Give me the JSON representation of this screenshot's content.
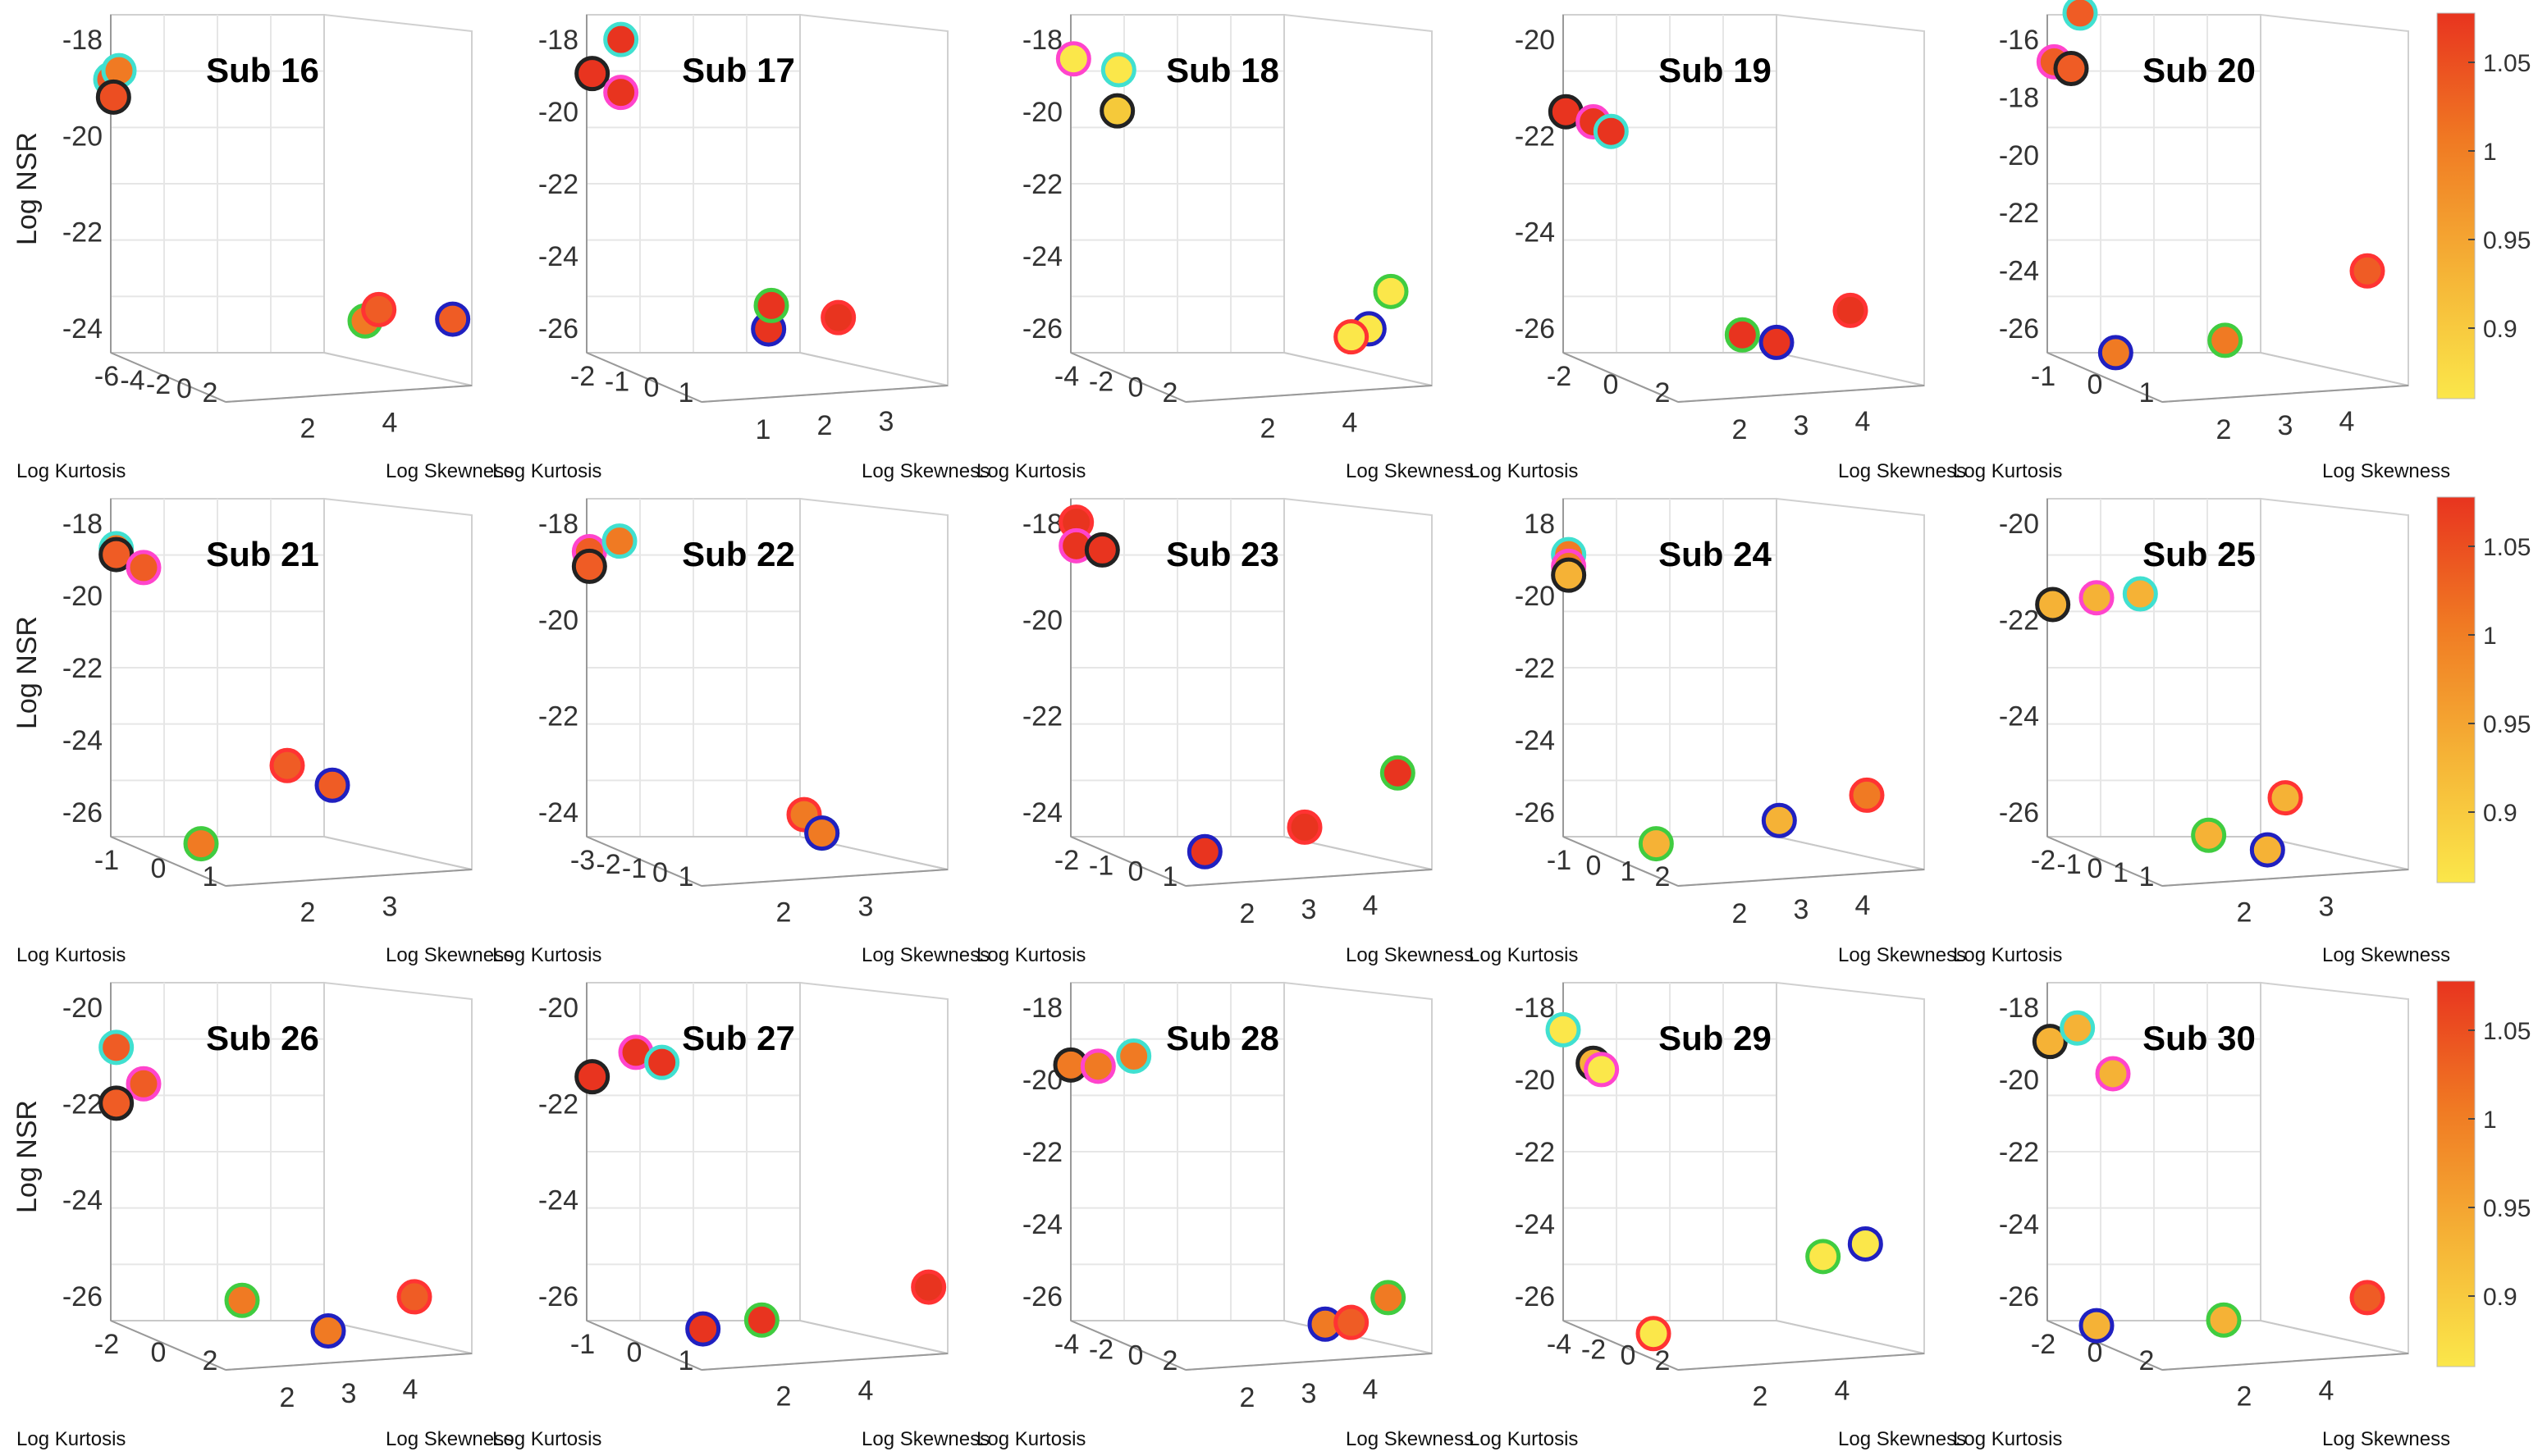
{
  "chart_data": {
    "type": "scatter",
    "projection": "3d",
    "marker_edge_colors": [
      "#222222",
      "#40e0d0",
      "#ff44cc",
      "#2020c0",
      "#40cc40",
      "#ff3333"
    ],
    "colorbar": {
      "ticks": [
        "1.05",
        "1",
        "0.95",
        "0.9"
      ],
      "colors": [
        "#e8341f",
        "#f07a23",
        "#f5b236",
        "#fbe74a"
      ]
    },
    "panels": [
      {
        "title": "Sub 16",
        "zlabel": "Log NSR",
        "xlabel": "Log Kurtosis",
        "ylabel": "Log Skewness",
        "zticks": [
          "-18",
          "-20",
          "-22",
          "-24"
        ],
        "xticks": [
          "-6",
          "-4",
          "-2",
          "0",
          "2"
        ],
        "yticks": [
          "2",
          "4"
        ],
        "points": [
          {
            "x": -4,
            "y": 0.5,
            "z": -18.2,
            "c": "#ef5c25",
            "e": 1
          },
          {
            "x": -1,
            "y": 0.5,
            "z": -17.9,
            "c": "#f07a23",
            "e": 1
          },
          {
            "x": -3,
            "y": 0.5,
            "z": -18.8,
            "c": "#ec4e22",
            "e": 0
          },
          {
            "x": -1,
            "y": 3.5,
            "z": -26.0,
            "c": "#f07a23",
            "e": 4
          },
          {
            "x": 1,
            "y": 3.6,
            "z": -25.6,
            "c": "#ef5c25",
            "e": 5
          },
          {
            "x": 1,
            "y": 4.6,
            "z": -25.8,
            "c": "#ef5c25",
            "e": 3
          }
        ]
      },
      {
        "title": "Sub 17",
        "zlabel": "",
        "xlabel": "Log Kurtosis",
        "ylabel": "Log Skewness",
        "zticks": [
          "-18",
          "-20",
          "-22",
          "-24",
          "-26"
        ],
        "xticks": [
          "-2",
          "-1",
          "0",
          "1"
        ],
        "yticks": [
          "1",
          "2",
          "3"
        ],
        "points": [
          {
            "x": -2,
            "y": 0.5,
            "z": -18.0,
            "c": "#e8341f",
            "e": 0
          },
          {
            "x": -0.5,
            "y": 0.8,
            "z": -16.8,
            "c": "#e8341f",
            "e": 1
          },
          {
            "x": -0.5,
            "y": 0.8,
            "z": -18.6,
            "c": "#e8341f",
            "e": 2
          },
          {
            "x": -0.5,
            "y": 2.6,
            "z": -26.4,
            "c": "#e8341f",
            "e": 3
          },
          {
            "x": 0.5,
            "y": 2.6,
            "z": -25.6,
            "c": "#e8341f",
            "e": 4
          },
          {
            "x": 1,
            "y": 3.4,
            "z": -25.9,
            "c": "#e8341f",
            "e": 5
          }
        ]
      },
      {
        "title": "Sub 18",
        "zlabel": "",
        "xlabel": "Log Kurtosis",
        "ylabel": "Log Skewness",
        "zticks": [
          "-18",
          "-20",
          "-22",
          "-24",
          "-26"
        ],
        "xticks": [
          "-4",
          "-2",
          "0",
          "2"
        ],
        "yticks": [
          "2",
          "4"
        ],
        "points": [
          {
            "x": -3,
            "y": 0.5,
            "z": -17.5,
            "c": "#fbe74a",
            "e": 2
          },
          {
            "x": -1.5,
            "y": 1.0,
            "z": -17.8,
            "c": "#fbe74a",
            "e": 1
          },
          {
            "x": -2,
            "y": 1.0,
            "z": -19.2,
            "c": "#f5c93a",
            "e": 0
          },
          {
            "x": 0,
            "y": 4.0,
            "z": -26.2,
            "c": "#fbe74a",
            "e": 3
          },
          {
            "x": -0.5,
            "y": 3.8,
            "z": -26.5,
            "c": "#fbe74a",
            "e": 5
          },
          {
            "x": 2,
            "y": 4.2,
            "z": -24.9,
            "c": "#fbe74a",
            "e": 4
          }
        ]
      },
      {
        "title": "Sub 19",
        "zlabel": "",
        "xlabel": "Log Kurtosis",
        "ylabel": "Log Skewness",
        "zticks": [
          "-20",
          "-22",
          "-24",
          "-26"
        ],
        "xticks": [
          "-2",
          "0",
          "2"
        ],
        "yticks": [
          "2",
          "3",
          "4"
        ],
        "points": [
          {
            "x": -3,
            "y": 0.5,
            "z": -19.3,
            "c": "#e8341f",
            "e": 0
          },
          {
            "x": -2,
            "y": 0.8,
            "z": -19.6,
            "c": "#e8341f",
            "e": 2
          },
          {
            "x": -1.5,
            "y": 1.0,
            "z": -19.9,
            "c": "#e8341f",
            "e": 1
          },
          {
            "x": -1,
            "y": 3.0,
            "z": -26.8,
            "c": "#e8341f",
            "e": 3
          },
          {
            "x": -1.5,
            "y": 2.6,
            "z": -26.6,
            "c": "#e8341f",
            "e": 4
          },
          {
            "x": 2,
            "y": 3.8,
            "z": -25.6,
            "c": "#e8341f",
            "e": 5
          }
        ]
      },
      {
        "title": "Sub 20",
        "zlabel": "",
        "xlabel": "Log Kurtosis",
        "ylabel": "Log Skewness",
        "zticks": [
          "-16",
          "-18",
          "-20",
          "-22",
          "-24",
          "-26"
        ],
        "xticks": [
          "-1",
          "0",
          "1"
        ],
        "yticks": [
          "2",
          "3",
          "4"
        ],
        "points": [
          {
            "x": -1.5,
            "y": 0.5,
            "z": -17.6,
            "c": "#ef5c25",
            "e": 2
          },
          {
            "x": -1,
            "y": 0.8,
            "z": -15.9,
            "c": "#ef5c25",
            "e": 1
          },
          {
            "x": -1.3,
            "y": 0.7,
            "z": -17.8,
            "c": "#ef5c25",
            "e": 0
          },
          {
            "x": 0,
            "y": 1.2,
            "z": -27.4,
            "c": "#f07a23",
            "e": 3
          },
          {
            "x": 1,
            "y": 2.5,
            "z": -26.8,
            "c": "#f07a23",
            "e": 4
          },
          {
            "x": 2,
            "y": 4.2,
            "z": -24.2,
            "c": "#ef5c25",
            "e": 5
          }
        ]
      },
      {
        "title": "Sub 21",
        "zlabel": "Log NSR",
        "xlabel": "Log Kurtosis",
        "ylabel": "Log Skewness",
        "zticks": [
          "-18",
          "-20",
          "-22",
          "-24",
          "-26"
        ],
        "xticks": [
          "-1",
          "0",
          "1"
        ],
        "yticks": [
          "2",
          "3"
        ],
        "points": [
          {
            "x": -2,
            "y": 0.5,
            "z": -17.7,
            "c": "#f07a23",
            "e": 1
          },
          {
            "x": -2,
            "y": 0.5,
            "z": -17.9,
            "c": "#ef5c25",
            "e": 0
          },
          {
            "x": -1,
            "y": 0.8,
            "z": -18.3,
            "c": "#ef5c25",
            "e": 2
          },
          {
            "x": -1,
            "y": 1.5,
            "z": -27.6,
            "c": "#f07a23",
            "e": 4
          },
          {
            "x": 0.5,
            "y": 2.5,
            "z": -24.8,
            "c": "#ef5c25",
            "e": 5
          },
          {
            "x": 2,
            "y": 3.0,
            "z": -25.4,
            "c": "#ef5c25",
            "e": 3
          }
        ]
      },
      {
        "title": "Sub 22",
        "zlabel": "",
        "xlabel": "Log Kurtosis",
        "ylabel": "Log Skewness",
        "zticks": [
          "-18",
          "-20",
          "-22",
          "-24"
        ],
        "xticks": [
          "-3",
          "-2",
          "-1",
          "0",
          "1"
        ],
        "yticks": [
          "2",
          "3"
        ],
        "points": [
          {
            "x": -3,
            "y": 0.5,
            "z": -17.8,
            "c": "#ef5c25",
            "e": 2
          },
          {
            "x": -3,
            "y": 0.5,
            "z": -18.3,
            "c": "#ef5c25",
            "e": 0
          },
          {
            "x": -1,
            "y": 0.8,
            "z": -17.4,
            "c": "#f07a23",
            "e": 1
          },
          {
            "x": 1,
            "y": 3.2,
            "z": -27.0,
            "c": "#f07a23",
            "e": 4
          },
          {
            "x": 0.5,
            "y": 3.0,
            "z": -26.4,
            "c": "#f07a23",
            "e": 5
          },
          {
            "x": 1,
            "y": 3.2,
            "z": -27.0,
            "c": "#f07a23",
            "e": 3
          }
        ]
      },
      {
        "title": "Sub 23",
        "zlabel": "",
        "xlabel": "Log Kurtosis",
        "ylabel": "Log Skewness",
        "zticks": [
          "-18",
          "-20",
          "-22",
          "-24"
        ],
        "xticks": [
          "-2",
          "-1",
          "0",
          "1"
        ],
        "yticks": [
          "2",
          "3",
          "4"
        ],
        "points": [
          {
            "x": -2,
            "y": 0.5,
            "z": -16.8,
            "c": "#e8341f",
            "e": 5
          },
          {
            "x": -2,
            "y": 0.5,
            "z": -17.6,
            "c": "#e8341f",
            "e": 2
          },
          {
            "x": -1.5,
            "y": 0.8,
            "z": -17.7,
            "c": "#e8341f",
            "e": 0
          },
          {
            "x": 0,
            "y": 2.0,
            "z": -27.8,
            "c": "#e8341f",
            "e": 3
          },
          {
            "x": 0.5,
            "y": 3.2,
            "z": -26.8,
            "c": "#e8341f",
            "e": 5
          },
          {
            "x": 1.5,
            "y": 4.3,
            "z": -24.8,
            "c": "#e8341f",
            "e": 4
          }
        ]
      },
      {
        "title": "Sub 24",
        "zlabel": "",
        "xlabel": "Log Kurtosis",
        "ylabel": "Log Skewness",
        "zticks": [
          "18",
          "-20",
          "-22",
          "-24",
          "-26"
        ],
        "xticks": [
          "-1",
          "0",
          "1",
          "2"
        ],
        "yticks": [
          "2",
          "3",
          "4"
        ],
        "points": [
          {
            "x": -2,
            "y": 0.5,
            "z": -17.9,
            "c": "#f07a23",
            "e": 1
          },
          {
            "x": -2,
            "y": 0.5,
            "z": -18.3,
            "c": "#f07a23",
            "e": 2
          },
          {
            "x": -2,
            "y": 0.5,
            "z": -18.6,
            "c": "#f5b236",
            "e": 0
          },
          {
            "x": 0,
            "y": 1.5,
            "z": -27.6,
            "c": "#f5b236",
            "e": 4
          },
          {
            "x": 0,
            "y": 3.0,
            "z": -26.6,
            "c": "#f5b236",
            "e": 3
          },
          {
            "x": 2,
            "y": 4.0,
            "z": -25.6,
            "c": "#f07a23",
            "e": 5
          }
        ]
      },
      {
        "title": "Sub 25",
        "zlabel": "",
        "xlabel": "Log Kurtosis",
        "ylabel": "Log Skewness",
        "zticks": [
          "-20",
          "-22",
          "-24",
          "-26"
        ],
        "xticks": [
          "-2",
          "-1",
          "0",
          "1",
          "1"
        ],
        "yticks": [
          "2",
          "3"
        ],
        "points": [
          {
            "x": -2,
            "y": 0.5,
            "z": -19.6,
            "c": "#f5b236",
            "e": 0
          },
          {
            "x": -1,
            "y": 1.0,
            "z": -19.3,
            "c": "#f5b236",
            "e": 2
          },
          {
            "x": 0,
            "y": 1.5,
            "z": -19.1,
            "c": "#f5b236",
            "e": 1
          },
          {
            "x": 1,
            "y": 2.3,
            "z": -27.2,
            "c": "#f5b236",
            "e": 4
          },
          {
            "x": 1.5,
            "y": 3.0,
            "z": -27.6,
            "c": "#f5b236",
            "e": 3
          },
          {
            "x": 2,
            "y": 3.2,
            "z": -25.8,
            "c": "#f5b236",
            "e": 5
          }
        ]
      },
      {
        "title": "Sub 26",
        "zlabel": "Log NSR",
        "xlabel": "Log Kurtosis",
        "ylabel": "Log Skewness",
        "zticks": [
          "-20",
          "-22",
          "-24",
          "-26"
        ],
        "xticks": [
          "-2",
          "0",
          "2"
        ],
        "yticks": [
          "2",
          "3",
          "4"
        ],
        "points": [
          {
            "x": -2,
            "y": 0.5,
            "z": -18.2,
            "c": "#ef5c25",
            "e": 1
          },
          {
            "x": -1,
            "y": 0.8,
            "z": -19.4,
            "c": "#ef5c25",
            "e": 2
          },
          {
            "x": -2,
            "y": 0.5,
            "z": -20.1,
            "c": "#ef5c25",
            "e": 0
          },
          {
            "x": -1,
            "y": 2.0,
            "z": -26.6,
            "c": "#f07a23",
            "e": 4
          },
          {
            "x": 0.5,
            "y": 3.0,
            "z": -27.5,
            "c": "#f07a23",
            "e": 3
          },
          {
            "x": 2,
            "y": 4.0,
            "z": -26.2,
            "c": "#ef5c25",
            "e": 5
          }
        ]
      },
      {
        "title": "Sub 27",
        "zlabel": "",
        "xlabel": "Log Kurtosis",
        "ylabel": "Log Skewness",
        "zticks": [
          "-20",
          "-22",
          "-24",
          "-26"
        ],
        "xticks": [
          "-1",
          "0",
          "1"
        ],
        "yticks": [
          "2",
          "4"
        ],
        "points": [
          {
            "x": -2,
            "y": 0.5,
            "z": -19.2,
            "c": "#e8341f",
            "e": 0
          },
          {
            "x": -1,
            "y": 1.0,
            "z": -18.3,
            "c": "#e8341f",
            "e": 2
          },
          {
            "x": -0.5,
            "y": 1.3,
            "z": -18.6,
            "c": "#e8341f",
            "e": 1
          },
          {
            "x": -0.5,
            "y": 1.8,
            "z": -27.6,
            "c": "#e8341f",
            "e": 3
          },
          {
            "x": 0,
            "y": 2.5,
            "z": -27.2,
            "c": "#e8341f",
            "e": 4
          },
          {
            "x": 1,
            "y": 4.5,
            "z": -25.8,
            "c": "#e8341f",
            "e": 5
          }
        ]
      },
      {
        "title": "Sub 28",
        "zlabel": "",
        "xlabel": "Log Kurtosis",
        "ylabel": "Log Skewness",
        "zticks": [
          "-18",
          "-20",
          "-22",
          "-24",
          "-26"
        ],
        "xticks": [
          "-4",
          "-2",
          "0",
          "2"
        ],
        "yticks": [
          "2",
          "3",
          "4"
        ],
        "points": [
          {
            "x": -4,
            "y": 0.5,
            "z": -18.8,
            "c": "#f07a23",
            "e": 0
          },
          {
            "x": -3,
            "y": 0.8,
            "z": -18.8,
            "c": "#f07a23",
            "e": 2
          },
          {
            "x": -2,
            "y": 1.2,
            "z": -18.4,
            "c": "#f07a23",
            "e": 1
          },
          {
            "x": -1,
            "y": 3.5,
            "z": -27.2,
            "c": "#f07a23",
            "e": 3
          },
          {
            "x": -0.5,
            "y": 3.8,
            "z": -27.1,
            "c": "#ef5c25",
            "e": 5
          },
          {
            "x": 1,
            "y": 4.2,
            "z": -26.2,
            "c": "#f07a23",
            "e": 4
          }
        ]
      },
      {
        "title": "Sub 29",
        "zlabel": "",
        "xlabel": "Log Kurtosis",
        "ylabel": "Log Skewness",
        "zticks": [
          "-18",
          "-20",
          "-22",
          "-24",
          "-26"
        ],
        "xticks": [
          "-4",
          "-2",
          "0",
          "2"
        ],
        "yticks": [
          "2",
          "4"
        ],
        "points": [
          {
            "x": -4,
            "y": 0.5,
            "z": -17.6,
            "c": "#fbe74a",
            "e": 1
          },
          {
            "x": -2,
            "y": 0.8,
            "z": -18.7,
            "c": "#f5b236",
            "e": 0
          },
          {
            "x": -2,
            "y": 0.9,
            "z": -18.9,
            "c": "#fbe74a",
            "e": 2
          },
          {
            "x": -1,
            "y": 1.5,
            "z": -27.8,
            "c": "#fbe74a",
            "e": 5
          },
          {
            "x": 1,
            "y": 3.5,
            "z": -24.9,
            "c": "#fbe74a",
            "e": 4
          },
          {
            "x": 1.5,
            "y": 4.0,
            "z": -24.4,
            "c": "#fbe74a",
            "e": 3
          }
        ]
      },
      {
        "title": "Sub 30",
        "zlabel": "",
        "xlabel": "Log Kurtosis",
        "ylabel": "Log Skewness",
        "zticks": [
          "-18",
          "-20",
          "-22",
          "-24",
          "-26"
        ],
        "xticks": [
          "-2",
          "0",
          "2"
        ],
        "yticks": [
          "2",
          "4"
        ],
        "points": [
          {
            "x": -3,
            "y": 0.5,
            "z": -18.0,
            "c": "#f5b236",
            "e": 0
          },
          {
            "x": -2,
            "y": 0.8,
            "z": -17.5,
            "c": "#f5b236",
            "e": 1
          },
          {
            "x": -1,
            "y": 1.2,
            "z": -19.0,
            "c": "#f5b236",
            "e": 2
          },
          {
            "x": -1,
            "y": 1.0,
            "z": -27.6,
            "c": "#f5b236",
            "e": 3
          },
          {
            "x": 0.5,
            "y": 2.5,
            "z": -27.2,
            "c": "#f5b236",
            "e": 4
          },
          {
            "x": 2,
            "y": 4.2,
            "z": -26.2,
            "c": "#ef5c25",
            "e": 5
          }
        ]
      }
    ]
  }
}
